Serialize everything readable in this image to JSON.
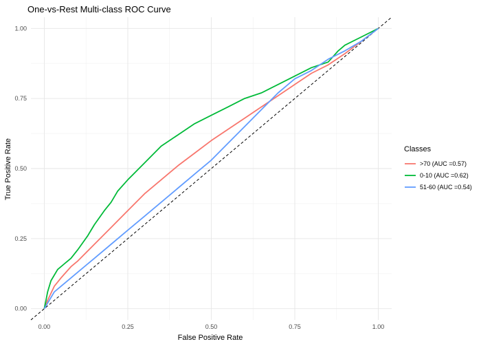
{
  "chart_data": {
    "type": "line",
    "title": "One-vs-Rest Multi-class ROC Curve",
    "xlabel": "False Positive Rate",
    "ylabel": "True Positive Rate",
    "xlim": [
      -0.04,
      1.04
    ],
    "ylim": [
      -0.04,
      1.04
    ],
    "x_ticks": [
      0,
      0.25,
      0.5,
      0.75,
      1
    ],
    "x_tick_labels": [
      "0.00",
      "0.25",
      "0.50",
      "0.75",
      "1.00"
    ],
    "y_ticks": [
      0,
      0.25,
      0.5,
      0.75,
      1
    ],
    "y_tick_labels": [
      "0.00",
      "0.25",
      "0.50",
      "0.75",
      "1.00"
    ],
    "grid": true,
    "legend": {
      "title": "Classes",
      "placement": "right"
    },
    "diagonal": {
      "style": "dashed",
      "color": "#000000"
    },
    "series": [
      {
        "name": ">70 (AUC =0.57)",
        "color": "#F8766D",
        "x": [
          0,
          0.01,
          0.03,
          0.05,
          0.08,
          0.1,
          0.15,
          0.2,
          0.25,
          0.3,
          0.35,
          0.4,
          0.45,
          0.5,
          0.55,
          0.6,
          0.65,
          0.7,
          0.75,
          0.8,
          0.85,
          0.9,
          0.95,
          1.0
        ],
        "y": [
          0,
          0.03,
          0.08,
          0.11,
          0.15,
          0.17,
          0.23,
          0.29,
          0.35,
          0.41,
          0.46,
          0.51,
          0.555,
          0.6,
          0.64,
          0.68,
          0.72,
          0.76,
          0.8,
          0.84,
          0.87,
          0.91,
          0.955,
          1.0
        ]
      },
      {
        "name": "0-10 (AUC =0.62)",
        "color": "#00BA38",
        "x": [
          0,
          0.005,
          0.01,
          0.02,
          0.04,
          0.06,
          0.08,
          0.1,
          0.13,
          0.15,
          0.18,
          0.2,
          0.22,
          0.25,
          0.3,
          0.35,
          0.4,
          0.45,
          0.5,
          0.55,
          0.6,
          0.65,
          0.7,
          0.75,
          0.8,
          0.85,
          0.88,
          0.9,
          0.95,
          1.0
        ],
        "y": [
          0,
          0.03,
          0.06,
          0.1,
          0.14,
          0.16,
          0.18,
          0.21,
          0.26,
          0.3,
          0.35,
          0.38,
          0.42,
          0.46,
          0.52,
          0.58,
          0.62,
          0.66,
          0.69,
          0.72,
          0.75,
          0.77,
          0.8,
          0.83,
          0.86,
          0.88,
          0.92,
          0.94,
          0.97,
          1.0
        ]
      },
      {
        "name": "51-60 (AUC =0.54)",
        "color": "#619CFF",
        "x": [
          0,
          0.01,
          0.03,
          0.05,
          0.08,
          0.1,
          0.15,
          0.2,
          0.25,
          0.3,
          0.35,
          0.4,
          0.45,
          0.5,
          0.55,
          0.6,
          0.65,
          0.7,
          0.75,
          0.8,
          0.85,
          0.9,
          0.95,
          1.0
        ],
        "y": [
          0,
          0.02,
          0.06,
          0.08,
          0.11,
          0.13,
          0.18,
          0.23,
          0.28,
          0.33,
          0.38,
          0.43,
          0.48,
          0.53,
          0.59,
          0.65,
          0.71,
          0.77,
          0.82,
          0.85,
          0.89,
          0.92,
          0.955,
          1.0
        ]
      }
    ]
  }
}
